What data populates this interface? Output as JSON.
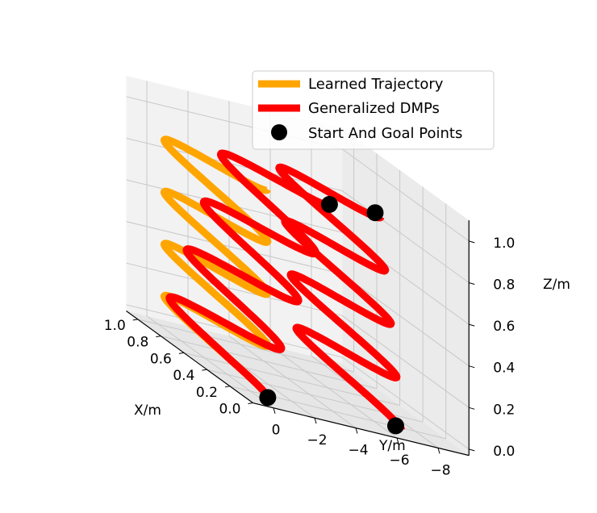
{
  "chart_data": {
    "type": "line3d",
    "title": "",
    "xlabel": "X/m",
    "ylabel": "Y/m",
    "zlabel": "Z/m",
    "x_ticks": [
      "0.0",
      "0.2",
      "0.4",
      "0.6",
      "0.8",
      "1.0"
    ],
    "y_ticks": [
      "0",
      "−2",
      "−4",
      "−6",
      "−8"
    ],
    "z_ticks": [
      "0.0",
      "0.2",
      "0.4",
      "0.6",
      "0.8",
      "1.0"
    ],
    "xlim": [
      0,
      1.1
    ],
    "ylim": [
      1,
      -9.5
    ],
    "zlim": [
      0,
      1.1
    ],
    "grid": true,
    "legend_position": "top-right",
    "series": [
      {
        "name": "Learned Trajectory",
        "color": "#ffa500",
        "x_center": 0.5,
        "x_amplitude": 0.45,
        "cycles": 4,
        "y": 0.0,
        "z_range": [
          0.0,
          1.0
        ]
      },
      {
        "name": "Generalized DMPs",
        "color": "#ff0000",
        "x_center": 0.5,
        "x_amplitude": 0.45,
        "cycles": 4,
        "y_start": 0.0,
        "y_end": -3.0,
        "z_range": [
          0.0,
          1.0
        ]
      },
      {
        "name": "Generalized DMPs",
        "color": "#ff0000",
        "x_center": 0.5,
        "x_amplitude": 0.45,
        "cycles": 4,
        "y_start": -6.5,
        "y_end": -5.5,
        "z_range": [
          0.0,
          1.0
        ]
      }
    ],
    "markers": {
      "name": "Start And Goal Points",
      "color": "#000000",
      "points": [
        {
          "x": 0.05,
          "y": 0.0,
          "z": 0.0
        },
        {
          "x": 0.05,
          "y": -3.0,
          "z": 1.0
        },
        {
          "x": 0.1,
          "y": -6.5,
          "z": 0.0
        },
        {
          "x": 0.1,
          "y": -5.5,
          "z": 1.0
        }
      ]
    }
  }
}
